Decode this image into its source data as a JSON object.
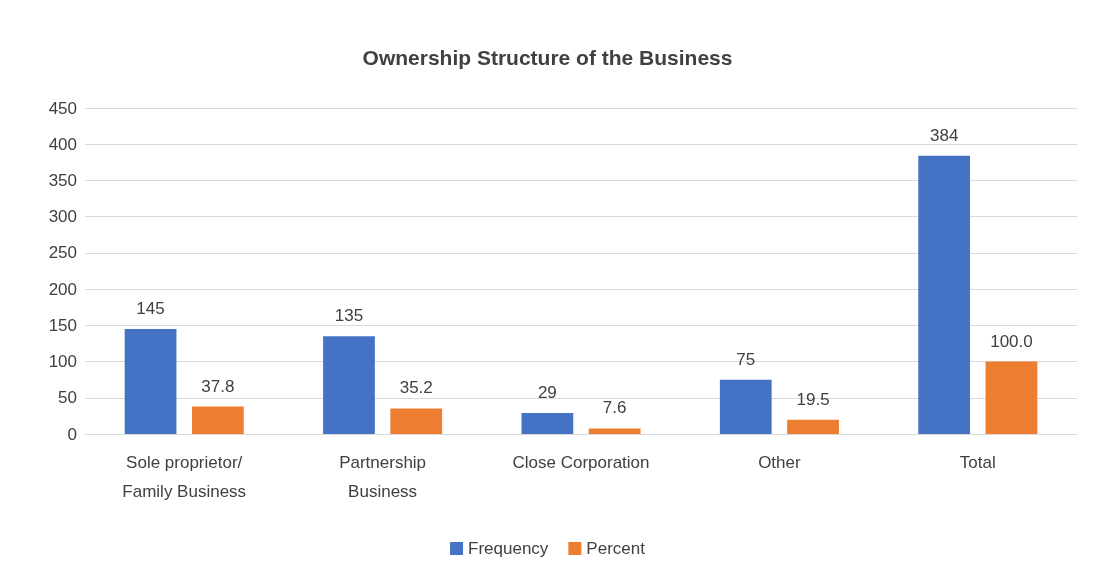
{
  "chart_data": {
    "type": "bar",
    "title": "Ownership Structure of the Business",
    "categories": [
      "Sole proprietor/\nFamily Business",
      "Partnership\nBusiness",
      "Close Corporation",
      "Other",
      "Total"
    ],
    "series": [
      {
        "name": "Frequency",
        "color": "#4472c4",
        "values": [
          145,
          135,
          29,
          75,
          384
        ],
        "value_labels": [
          "145",
          "135",
          "29",
          "75",
          "384"
        ]
      },
      {
        "name": "Percent",
        "color": "#ed7d31",
        "values": [
          37.8,
          35.2,
          7.6,
          19.5,
          100.0
        ],
        "value_labels": [
          "37.8",
          "35.2",
          "7.6",
          "19.5",
          "100.0"
        ]
      }
    ],
    "ylim": [
      0,
      450
    ],
    "yticks": [
      0,
      50,
      100,
      150,
      200,
      250,
      300,
      350,
      400,
      450
    ],
    "grid": "y",
    "legend": "bottom"
  }
}
